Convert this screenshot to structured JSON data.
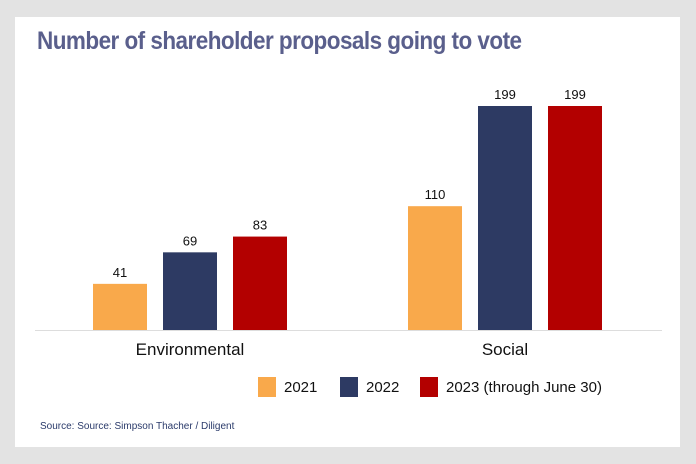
{
  "chart_data": {
    "type": "bar",
    "title": "Number of shareholder proposals going to vote",
    "categories": [
      "Environmental",
      "Social"
    ],
    "series": [
      {
        "name": "2021",
        "values": [
          41,
          110
        ],
        "color": "#f9a94b"
      },
      {
        "name": "2022",
        "values": [
          69,
          199
        ],
        "color": "#2d3a63"
      },
      {
        "name": "2023 (through June 30)",
        "values": [
          83,
          199
        ],
        "color": "#b30000"
      }
    ],
    "ylim": [
      0,
      199
    ],
    "grid": false,
    "legend": "bottom-right",
    "data_labels": true
  },
  "source": "Source: Source: Simpson Thacher / Diligent"
}
